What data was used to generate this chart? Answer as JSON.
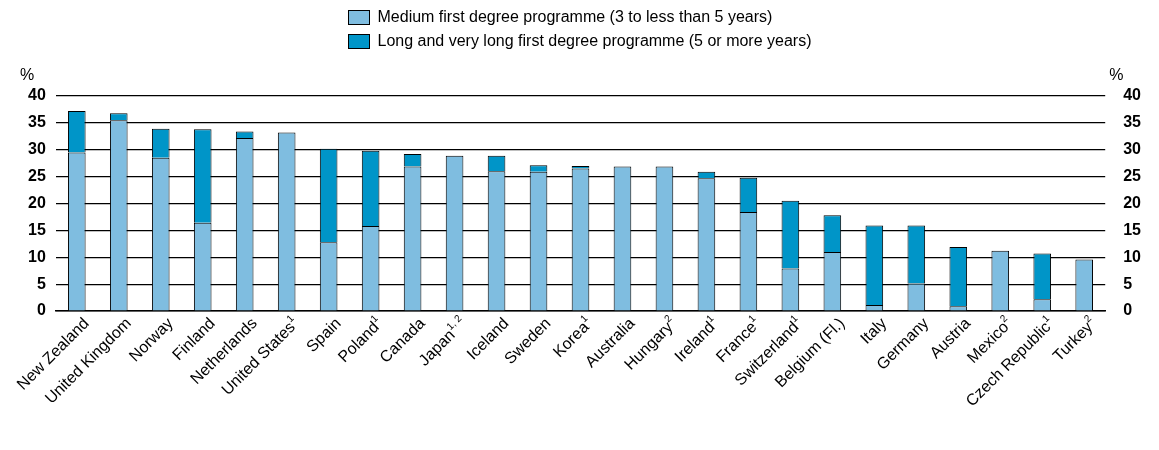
{
  "chart_data": {
    "type": "bar",
    "stacked": true,
    "categories": [
      "New Zealand",
      "United Kingdom",
      "Norway",
      "Finland",
      "Netherlands",
      "United States$^{1}$",
      "Spain",
      "Poland$^{1}$",
      "Canada",
      "Japan$^{1, 2}$",
      "Iceland",
      "Sweden",
      "Korea$^{1}$",
      "Australia",
      "Hungary$^{2}$",
      "Ireland$^{1}$",
      "France$^{1}$",
      "Switzerland$^{1}$",
      "Belgium (Fl.)",
      "Italy",
      "Germany",
      "Austria",
      "Mexico$^{2}$",
      "Czech Republic$^{1}$",
      "Turkey$^{2}$"
    ],
    "series": [
      {
        "name": "Medium first degree programme (3 to less than 5 years)",
        "color": "#7fbde0",
        "values": [
          29.5,
          35.5,
          28.5,
          16.4,
          32.2,
          33.2,
          12.8,
          15.8,
          26.9,
          28.9,
          26.0,
          25.9,
          26.5,
          26.9,
          26.9,
          24.7,
          18.4,
          7.9,
          11.0,
          1.1,
          5.1,
          0.9,
          11.2,
          2.2,
          9.6
        ]
      },
      {
        "name": "Long and very long first degree programme (5 or more years)",
        "color": "#0095c8",
        "values": [
          7.7,
          1.3,
          5.4,
          17.4,
          1.2,
          null,
          17.4,
          14.0,
          2.3,
          null,
          2.9,
          1.2,
          0.5,
          null,
          null,
          1.2,
          6.4,
          12.6,
          6.8,
          14.8,
          10.8,
          11.0,
          null,
          8.5,
          null
        ]
      }
    ],
    "ylabel": "%",
    "y2label": "%",
    "ylim": [
      0,
      40
    ],
    "yticks": [
      0,
      5,
      10,
      15,
      20,
      25,
      30,
      35,
      40
    ],
    "y2lim": [
      0,
      40
    ],
    "y2ticks": [
      0,
      5,
      10,
      15,
      20,
      25,
      30,
      35,
      40
    ],
    "grid": "y",
    "legend": "top"
  }
}
